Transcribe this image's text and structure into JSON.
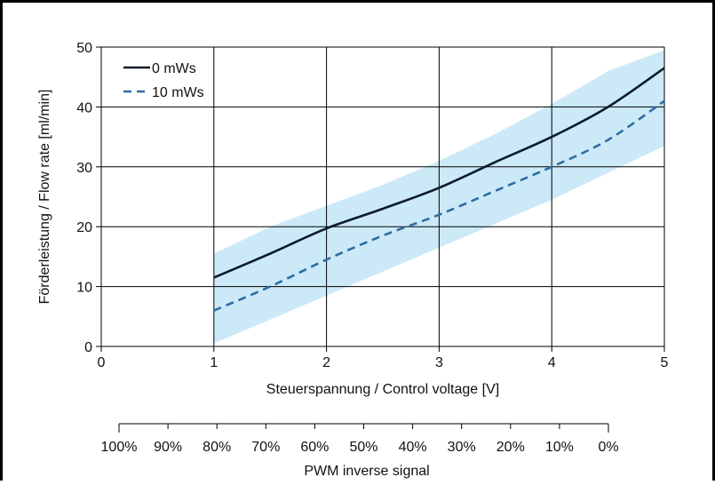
{
  "chart_data": {
    "type": "line",
    "xlabel": "Steuerspannung / Control voltage [V]",
    "ylabel": "Förderleistung / Flow rate [ml/min]",
    "xlim": [
      0,
      5
    ],
    "ylim": [
      0,
      50
    ],
    "x_ticks": [
      "0",
      "1",
      "2",
      "3",
      "4",
      "5"
    ],
    "y_ticks": [
      "0",
      "10",
      "20",
      "30",
      "40",
      "50"
    ],
    "grid": true,
    "legend_position": "top-left",
    "band": {
      "color": "#cce9f8",
      "x": [
        1,
        1.5,
        2,
        2.5,
        3,
        3.5,
        4,
        4.5,
        5
      ],
      "upper": [
        15.5,
        20,
        23.5,
        27,
        31,
        35.5,
        40.5,
        46,
        49.5
      ],
      "lower": [
        0.5,
        4.5,
        8.5,
        12.5,
        16.5,
        20.5,
        24.5,
        29,
        33.5
      ]
    },
    "series": [
      {
        "name": "0 mWs",
        "style": "solid",
        "color": "#0d1b2a",
        "x": [
          1,
          1.5,
          2,
          2.5,
          3,
          3.5,
          4,
          4.5,
          5
        ],
        "y": [
          11.5,
          15.5,
          19.7,
          23,
          26.5,
          30.8,
          35,
          40,
          46.5
        ]
      },
      {
        "name": "10 mWs",
        "style": "dashed",
        "color": "#2e6da4",
        "x": [
          1,
          1.5,
          2,
          2.5,
          3,
          3.5,
          4,
          4.5,
          5
        ],
        "y": [
          6,
          10,
          14.5,
          18.5,
          22,
          26,
          30,
          34.5,
          41
        ]
      }
    ],
    "secondary_axis": {
      "label": "PWM inverse signal",
      "ticks": [
        "100%",
        "90%",
        "80%",
        "70%",
        "60%",
        "50%",
        "40%",
        "30%",
        "20%",
        "10%",
        "0%"
      ]
    }
  }
}
